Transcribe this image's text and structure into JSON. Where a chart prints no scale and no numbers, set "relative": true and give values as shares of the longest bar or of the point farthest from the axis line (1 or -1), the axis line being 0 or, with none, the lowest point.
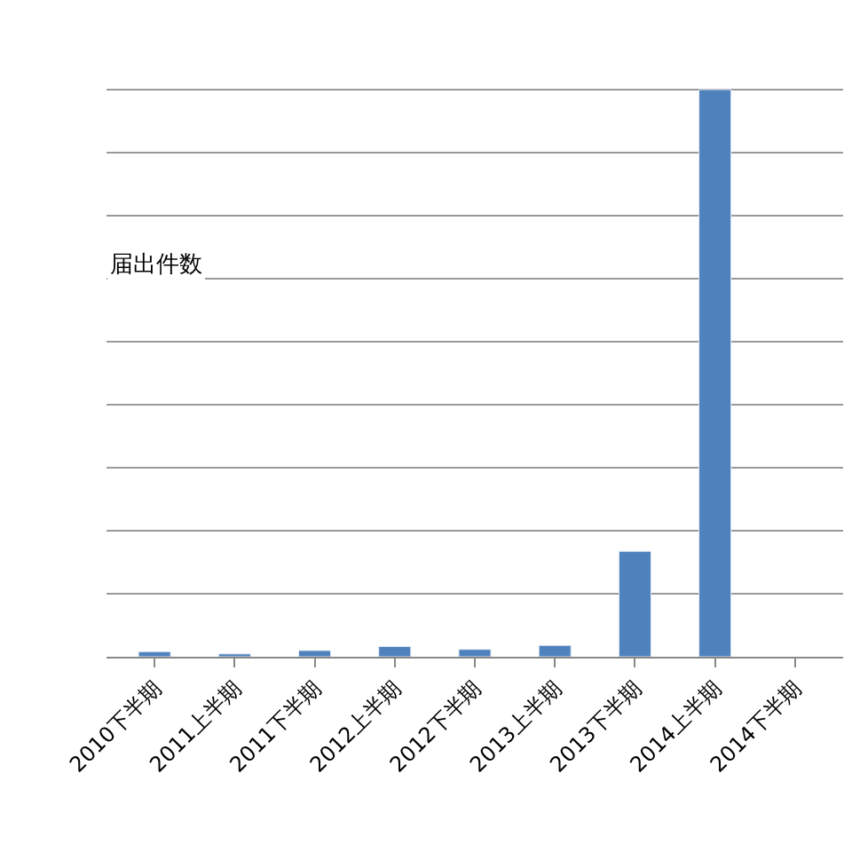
{
  "chart_data": {
    "type": "bar",
    "relative": true,
    "categories": [
      "2010下半期",
      "2011上半期",
      "2011下半期",
      "2012上半期",
      "2012下半期",
      "2013上半期",
      "2013下半期",
      "2014上半期",
      "2014下半期"
    ],
    "values": [
      0.009,
      0.005,
      0.011,
      0.018,
      0.013,
      0.02,
      0.186,
      1,
      null
    ],
    "color": "#4f81bd",
    "grid": "y",
    "annotations": [
      "届出件数"
    ]
  }
}
